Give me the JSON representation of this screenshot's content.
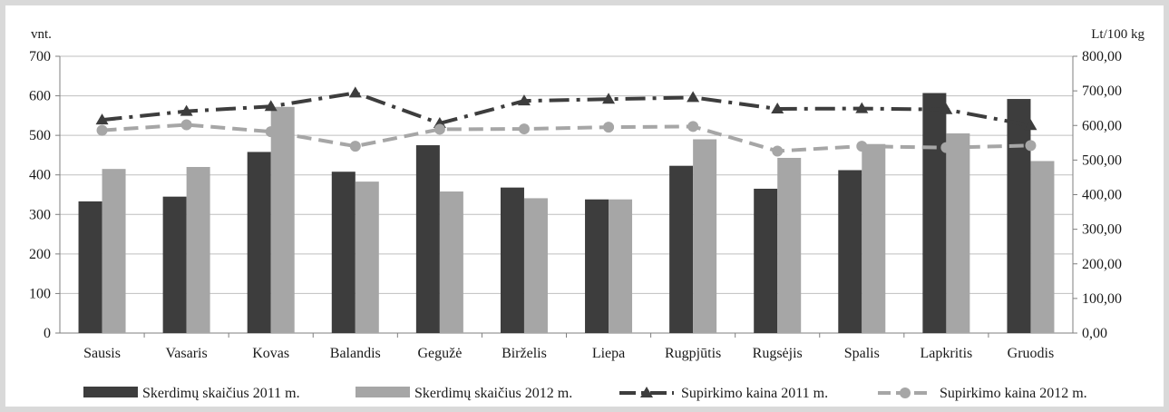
{
  "chart_data": {
    "type": "bar",
    "categories": [
      "Sausis",
      "Vasaris",
      "Kovas",
      "Balandis",
      "Gegužė",
      "Birželis",
      "Liepa",
      "Rugpjūtis",
      "Rugsėjis",
      "Spalis",
      "Lapkritis",
      "Gruodis"
    ],
    "left_axis": {
      "unit_label": "vnt.",
      "ylim": [
        0,
        700
      ],
      "ticks": [
        "0",
        "100",
        "200",
        "300",
        "400",
        "500",
        "600",
        "700"
      ]
    },
    "right_axis": {
      "unit_label": "Lt/100 kg",
      "ylim": [
        0,
        800
      ],
      "ticks": [
        "0,00",
        "100,00",
        "200,00",
        "300,00",
        "400,00",
        "500,00",
        "600,00",
        "700,00",
        "800,00"
      ]
    },
    "series": [
      {
        "name": "Skerdimų skaičius 2011 m.",
        "type": "bar",
        "axis": "left",
        "color": "#3d3d3d",
        "values": [
          333,
          345,
          458,
          408,
          475,
          368,
          338,
          423,
          365,
          412,
          607,
          592
        ]
      },
      {
        "name": "Skerdimų skaičius 2012 m.",
        "type": "bar",
        "axis": "left",
        "color": "#a6a6a6",
        "values": [
          415,
          420,
          572,
          383,
          358,
          341,
          338,
          490,
          443,
          478,
          505,
          435
        ]
      },
      {
        "name": "Supirkimo kaina 2011 m.",
        "type": "line",
        "axis": "right",
        "color": "#3d3d3d",
        "marker": "triangle",
        "dash": "dash-dot",
        "values": [
          616,
          641,
          655,
          694,
          606,
          671,
          676,
          681,
          648,
          649,
          646,
          600
        ]
      },
      {
        "name": "Supirkimo kaina 2012 m.",
        "type": "line",
        "axis": "right",
        "color": "#a6a6a6",
        "marker": "circle",
        "dash": "dash",
        "values": [
          586,
          602,
          582,
          540,
          589,
          590,
          595,
          597,
          526,
          540,
          536,
          542
        ]
      }
    ],
    "grid": "horizontal",
    "legend_position": "bottom"
  }
}
